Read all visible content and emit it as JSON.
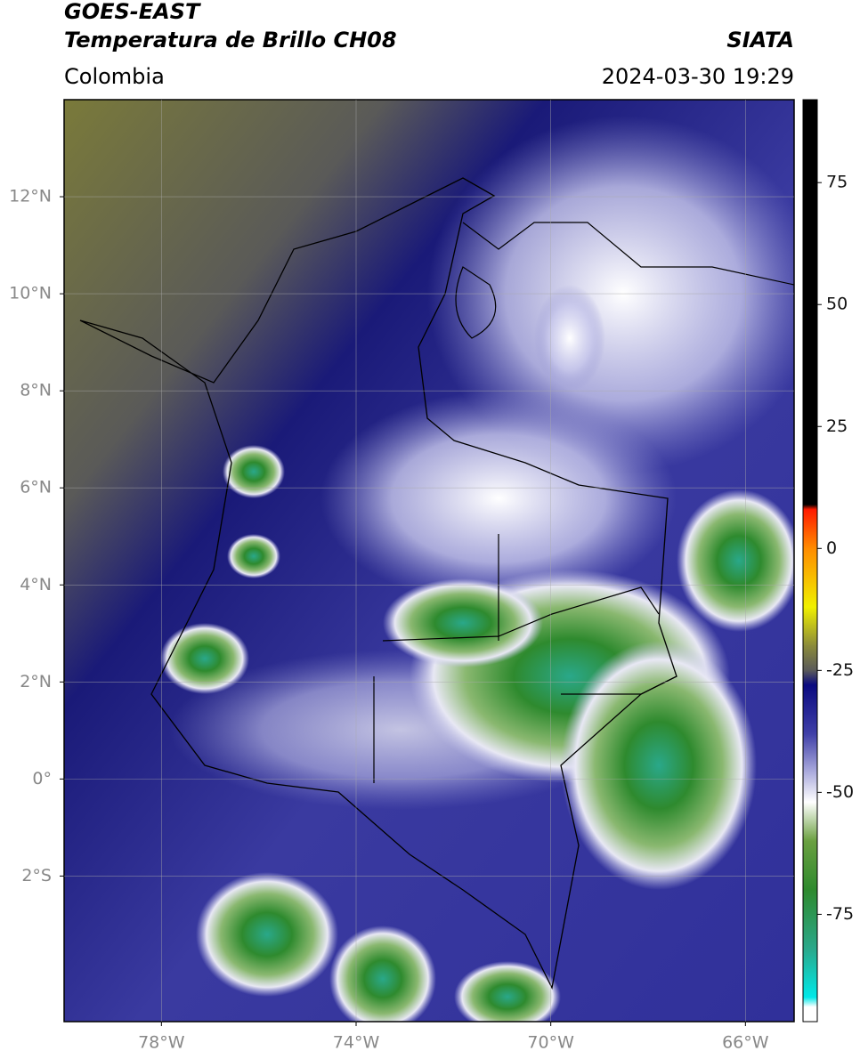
{
  "header": {
    "title": "GOES-EAST",
    "subtitle": "Temperatura de Brillo CH08",
    "source": "SIATA",
    "region": "Colombia",
    "datetime": "2024-03-30 19:29"
  },
  "map": {
    "xlim": [
      -80,
      -65
    ],
    "ylim": [
      -5,
      14
    ],
    "xticks": [
      {
        "value": -78,
        "label": "78°W"
      },
      {
        "value": -74,
        "label": "74°W"
      },
      {
        "value": -70,
        "label": "70°W"
      },
      {
        "value": -66,
        "label": "66°W"
      }
    ],
    "yticks": [
      {
        "value": 12,
        "label": "12°N"
      },
      {
        "value": 10,
        "label": "10°N"
      },
      {
        "value": 8,
        "label": "8°N"
      },
      {
        "value": 6,
        "label": "6°N"
      },
      {
        "value": 4,
        "label": "4°N"
      },
      {
        "value": 2,
        "label": "2°N"
      },
      {
        "value": 0,
        "label": "0°"
      },
      {
        "value": -2,
        "label": "2°S"
      }
    ],
    "grid": true
  },
  "colorbar": {
    "lim": [
      -97,
      92
    ],
    "ticks": [
      75,
      50,
      25,
      0,
      -25,
      -50,
      -75
    ],
    "stops": [
      {
        "value": 92,
        "color": "#000000"
      },
      {
        "value": 9,
        "color": "#000000"
      },
      {
        "value": 8,
        "color": "#ff1a00"
      },
      {
        "value": 0,
        "color": "#ff8c00"
      },
      {
        "value": -12,
        "color": "#f0f000"
      },
      {
        "value": -20,
        "color": "#8a8a3a"
      },
      {
        "value": -25,
        "color": "#5a5a5a"
      },
      {
        "value": -28,
        "color": "#0a0a80"
      },
      {
        "value": -38,
        "color": "#4040a8"
      },
      {
        "value": -45,
        "color": "#a0a0d8"
      },
      {
        "value": -52,
        "color": "#ffffff"
      },
      {
        "value": -60,
        "color": "#6aa040"
      },
      {
        "value": -70,
        "color": "#2e8a2e"
      },
      {
        "value": -82,
        "color": "#2aa88a"
      },
      {
        "value": -92,
        "color": "#00e8e8"
      },
      {
        "value": -94,
        "color": "#ffffff"
      },
      {
        "value": -97,
        "color": "#ffffff"
      }
    ]
  }
}
